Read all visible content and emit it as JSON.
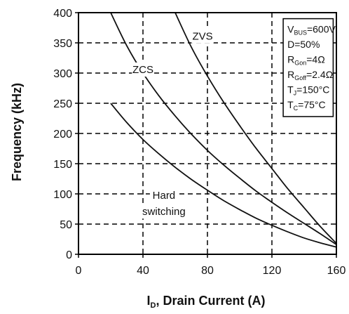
{
  "chart_data": {
    "type": "line",
    "title": "",
    "xlabel": "D, Drain Current (A)",
    "xlabel_prefix": "I",
    "ylabel": "Frequency (kHz)",
    "xlim": [
      0,
      160
    ],
    "ylim": [
      0,
      400
    ],
    "xticks": [
      0,
      40,
      80,
      120,
      160
    ],
    "yticks": [
      0,
      50,
      100,
      150,
      200,
      250,
      300,
      350,
      400
    ],
    "grid": true,
    "grid_style": "dashed",
    "series": [
      {
        "name": "Hard switching",
        "x": [
          20,
          30,
          40,
          50,
          60,
          70,
          80,
          90,
          100,
          110,
          120,
          130,
          140,
          150,
          160
        ],
        "y": [
          250,
          218,
          190,
          166,
          144,
          124,
          106,
          89,
          74,
          60,
          48,
          37,
          27,
          19,
          12
        ]
      },
      {
        "name": "ZCS",
        "x": [
          20,
          30,
          40,
          50,
          60,
          70,
          80,
          90,
          100,
          110,
          120,
          130,
          140,
          150,
          160
        ],
        "y": [
          400,
          345,
          300,
          262,
          229,
          199,
          172,
          148,
          126,
          105,
          86,
          68,
          51,
          34,
          16
        ]
      },
      {
        "name": "ZVS",
        "x": [
          60,
          70,
          80,
          90,
          100,
          110,
          120,
          130,
          140,
          150,
          160
        ],
        "y": [
          400,
          343,
          295,
          252,
          213,
          176,
          142,
          108,
          77,
          46,
          18
        ]
      }
    ],
    "annotations": [
      {
        "text": "ZVS",
        "x": 77,
        "y": 355
      },
      {
        "text": "ZCS",
        "x": 40,
        "y": 300
      },
      {
        "text": "Hard",
        "x": 53,
        "y": 92
      },
      {
        "text": "switching",
        "x": 53,
        "y": 65
      }
    ],
    "conditions": [
      {
        "main": "V",
        "sub": "BUS",
        "rest": "=600V"
      },
      {
        "main": "D=50%",
        "sub": "",
        "rest": ""
      },
      {
        "main": "R",
        "sub": "Gon",
        "rest": "=4Ω"
      },
      {
        "main": "R",
        "sub": "Goff",
        "rest": "=2.4Ω"
      },
      {
        "main": "T",
        "sub": "J",
        "rest": "=150°C"
      },
      {
        "main": "T",
        "sub": "C",
        "rest": "=75°C"
      }
    ],
    "conditions_placement": "top-right"
  }
}
